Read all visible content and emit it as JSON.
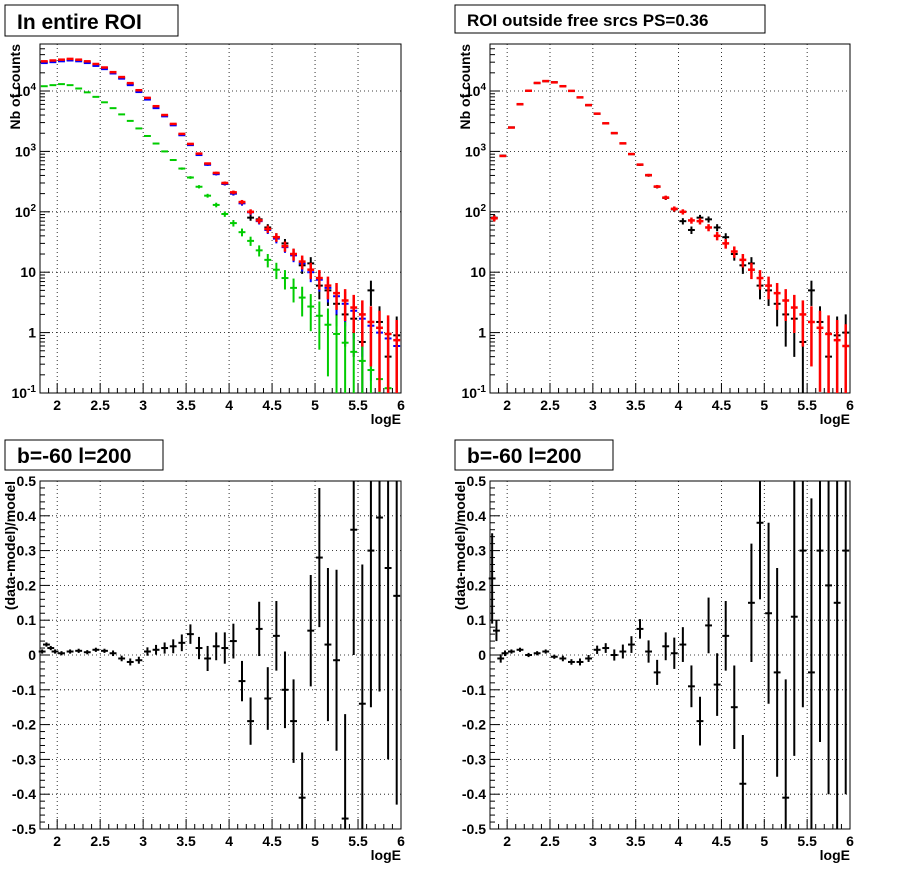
{
  "chart_data": [
    {
      "type": "scatter",
      "title": "In entire ROI",
      "xlabel": "logE",
      "ylabel": "Nb of counts",
      "xlim": [
        1.8,
        6.0
      ],
      "ylim": [
        0.1,
        60000
      ],
      "yscale": "log",
      "grid": true,
      "xticks": [
        "2",
        "2.5",
        "3",
        "3.5",
        "4",
        "4.5",
        "5",
        "5.5",
        "6"
      ],
      "yticks": [
        "10^-1",
        "1",
        "10",
        "10^2",
        "10^3",
        "10^4"
      ],
      "series": [
        {
          "color": "#000000",
          "x": [
            1.85,
            1.95,
            2.05,
            2.15,
            2.25,
            2.35,
            2.45,
            2.55,
            2.65,
            2.75,
            2.85,
            2.95,
            3.05,
            3.15,
            3.25,
            3.35,
            3.45,
            3.55,
            3.65,
            3.75,
            3.85,
            3.95,
            4.05,
            4.15,
            4.25,
            4.35,
            4.45,
            4.55,
            4.65,
            4.75,
            4.85,
            4.95,
            5.05,
            5.15,
            5.25,
            5.35,
            5.45,
            5.55,
            5.65,
            5.75,
            5.85,
            5.95
          ],
          "y": [
            30000,
            31000,
            32000,
            33000,
            32000,
            30000,
            27000,
            24000,
            20000,
            16500,
            13000,
            10000,
            7500,
            5400,
            3900,
            2800,
            1900,
            1300,
            900,
            620,
            430,
            290,
            200,
            140,
            80,
            75,
            55,
            38,
            30,
            20,
            13,
            14,
            6,
            5,
            3,
            2,
            1.7,
            0.7,
            5,
            1.5,
            0.4,
            0.9
          ]
        },
        {
          "color": "#0000ff",
          "x": [
            1.85,
            1.95,
            2.05,
            2.15,
            2.25,
            2.35,
            2.45,
            2.55,
            2.65,
            2.75,
            2.85,
            2.95,
            3.05,
            3.15,
            3.25,
            3.35,
            3.45,
            3.55,
            3.65,
            3.75,
            3.85,
            3.95,
            4.05,
            4.15,
            4.25,
            4.35,
            4.45,
            4.55,
            4.65,
            4.75,
            4.85,
            4.95,
            5.05,
            5.15,
            5.25,
            5.35,
            5.45,
            5.55,
            5.65,
            5.75,
            5.85,
            5.95
          ],
          "y": [
            29000,
            30000,
            31000,
            32000,
            31000,
            29000,
            26000,
            23000,
            19500,
            16000,
            12500,
            9600,
            7200,
            5200,
            3800,
            2700,
            1850,
            1270,
            870,
            600,
            420,
            290,
            200,
            138,
            98,
            70,
            50,
            36,
            26,
            19,
            14,
            10,
            7.5,
            5.5,
            4,
            3,
            2.3,
            1.7,
            1.3,
            1,
            0.8,
            0.6
          ]
        },
        {
          "color": "#00cc00",
          "x": [
            1.85,
            1.95,
            2.05,
            2.15,
            2.25,
            2.35,
            2.45,
            2.55,
            2.65,
            2.75,
            2.85,
            2.95,
            3.05,
            3.15,
            3.25,
            3.35,
            3.45,
            3.55,
            3.65,
            3.75,
            3.85,
            3.95,
            4.05,
            4.15,
            4.25,
            4.35,
            4.45,
            4.55,
            4.65,
            4.75,
            4.85,
            4.95,
            5.05,
            5.15,
            5.25,
            5.35,
            5.45,
            5.55,
            5.65,
            5.75,
            5.85,
            5.95
          ],
          "y": [
            12000,
            12500,
            13000,
            12500,
            11000,
            9500,
            8000,
            6500,
            5200,
            4100,
            3200,
            2400,
            1800,
            1350,
            1000,
            720,
            520,
            370,
            260,
            185,
            130,
            92,
            65,
            46,
            33,
            23,
            16,
            11,
            8,
            5.5,
            3.8,
            2.7,
            1.9,
            1.35,
            0.95,
            0.68,
            0.48,
            0.34,
            0.24,
            0.17,
            0.12,
            0.09
          ]
        },
        {
          "color": "#ff0000",
          "x": [
            1.85,
            1.95,
            2.05,
            2.15,
            2.25,
            2.35,
            2.45,
            2.55,
            2.65,
            2.75,
            2.85,
            2.95,
            3.05,
            3.15,
            3.25,
            3.35,
            3.45,
            3.55,
            3.65,
            3.75,
            3.85,
            3.95,
            4.05,
            4.15,
            4.25,
            4.35,
            4.45,
            4.55,
            4.65,
            4.75,
            4.85,
            4.95,
            5.05,
            5.15,
            5.25,
            5.35,
            5.45,
            5.55,
            5.65,
            5.75,
            5.85,
            5.95
          ],
          "y": [
            31000,
            32000,
            33000,
            34000,
            33000,
            31000,
            28000,
            24500,
            20500,
            17000,
            13500,
            10300,
            7700,
            5600,
            4000,
            2850,
            1950,
            1330,
            920,
            630,
            440,
            300,
            210,
            145,
            100,
            72,
            52,
            38,
            27,
            20,
            15,
            11,
            8,
            6,
            4.5,
            3.4,
            2.6,
            2,
            1.5,
            1.2,
            0.95,
            0.75
          ]
        }
      ]
    },
    {
      "type": "scatter",
      "title": "ROI outside free srcs PS=0.36",
      "xlabel": "logE",
      "ylabel": "Nb of counts",
      "xlim": [
        1.8,
        6.0
      ],
      "ylim": [
        0.1,
        60000
      ],
      "yscale": "log",
      "grid": true,
      "xticks": [
        "2",
        "2.5",
        "3",
        "3.5",
        "4",
        "4.5",
        "5",
        "5.5",
        "6"
      ],
      "yticks": [
        "10^-1",
        "1",
        "10",
        "10^2",
        "10^3",
        "10^4"
      ],
      "series": [
        {
          "color": "#000000",
          "x": [
            1.85,
            1.95,
            2.05,
            2.15,
            2.25,
            2.35,
            2.45,
            2.55,
            2.65,
            2.75,
            2.85,
            2.95,
            3.05,
            3.15,
            3.25,
            3.35,
            3.45,
            3.55,
            3.65,
            3.75,
            3.85,
            3.95,
            4.05,
            4.15,
            4.25,
            4.35,
            4.45,
            4.55,
            4.65,
            4.75,
            4.85,
            4.95,
            5.05,
            5.15,
            5.25,
            5.35,
            5.45,
            5.55,
            5.65,
            5.75,
            5.85,
            5.95
          ],
          "y": [
            80,
            850,
            2500,
            6000,
            10000,
            13500,
            14500,
            14000,
            12000,
            10000,
            7800,
            5800,
            4200,
            2900,
            2000,
            1350,
            900,
            600,
            400,
            260,
            170,
            110,
            70,
            50,
            80,
            75,
            55,
            38,
            20,
            13,
            14,
            6,
            5,
            3,
            2,
            1.7,
            0.7,
            5,
            1.5,
            0.4,
            0.9,
            1
          ]
        },
        {
          "color": "#ff0000",
          "x": [
            1.85,
            1.95,
            2.05,
            2.15,
            2.25,
            2.35,
            2.45,
            2.55,
            2.65,
            2.75,
            2.85,
            2.95,
            3.05,
            3.15,
            3.25,
            3.35,
            3.45,
            3.55,
            3.65,
            3.75,
            3.85,
            3.95,
            4.05,
            4.15,
            4.25,
            4.35,
            4.45,
            4.55,
            4.65,
            4.75,
            4.85,
            4.95,
            5.05,
            5.15,
            5.25,
            5.35,
            5.45,
            5.55,
            5.65,
            5.75,
            5.85,
            5.95
          ],
          "y": [
            78,
            840,
            2480,
            6050,
            10100,
            13600,
            14600,
            13900,
            12000,
            10050,
            7850,
            5850,
            4220,
            2920,
            2010,
            1360,
            905,
            605,
            405,
            262,
            172,
            112,
            100,
            72,
            70,
            55,
            40,
            30,
            22,
            16,
            11,
            8,
            6,
            4.5,
            3.4,
            2.6,
            2,
            1.5,
            1.2,
            0.95,
            0.75,
            0.6
          ]
        }
      ]
    },
    {
      "type": "scatter",
      "title": "b=-60 l=200",
      "xlabel": "logE",
      "ylabel": "(data-model)/model",
      "xlim": [
        1.8,
        6.0
      ],
      "ylim": [
        -0.5,
        0.5
      ],
      "grid": true,
      "xticks": [
        "2",
        "2.5",
        "3",
        "3.5",
        "4",
        "4.5",
        "5",
        "5.5",
        "6"
      ],
      "yticks": [
        "-0.5",
        "-0.4",
        "-0.3",
        "-0.2",
        "-0.1",
        "0",
        "0.1",
        "0.2",
        "0.3",
        "0.4",
        "0.5"
      ],
      "series": [
        {
          "color": "#000000",
          "x": [
            1.825,
            1.875,
            1.925,
            1.975,
            2.05,
            2.15,
            2.25,
            2.35,
            2.45,
            2.55,
            2.65,
            2.75,
            2.85,
            2.95,
            3.05,
            3.15,
            3.25,
            3.35,
            3.45,
            3.55,
            3.65,
            3.75,
            3.85,
            3.95,
            4.05,
            4.15,
            4.25,
            4.35,
            4.45,
            4.55,
            4.65,
            4.75,
            4.85,
            4.95,
            5.05,
            5.15,
            5.25,
            5.35,
            5.45,
            5.55,
            5.65,
            5.75,
            5.85,
            5.95
          ],
          "y": [
            0.01,
            0.03,
            0.02,
            0.01,
            0.005,
            0.01,
            0.012,
            0.008,
            0.015,
            0.012,
            0.005,
            -0.01,
            -0.02,
            -0.015,
            0.01,
            0.015,
            0.02,
            0.025,
            0.035,
            0.06,
            0.02,
            -0.01,
            0.025,
            0.02,
            0.04,
            -0.075,
            -0.19,
            0.075,
            -0.125,
            0.055,
            -0.1,
            -0.19,
            -0.41,
            0.07,
            0.28,
            0.03,
            -0.015,
            -0.47,
            0.36,
            -0.14,
            0.3,
            0.395,
            0.25,
            0.17
          ],
          "err": [
            0.006,
            0.006,
            0.006,
            0.006,
            0.006,
            0.006,
            0.006,
            0.006,
            0.006,
            0.006,
            0.008,
            0.008,
            0.01,
            0.01,
            0.012,
            0.014,
            0.016,
            0.02,
            0.024,
            0.028,
            0.032,
            0.036,
            0.04,
            0.045,
            0.05,
            0.058,
            0.068,
            0.078,
            0.09,
            0.1,
            0.11,
            0.12,
            0.13,
            0.16,
            0.2,
            0.22,
            0.26,
            0.3,
            0.36,
            0.4,
            0.45,
            0.5,
            0.55,
            0.6
          ]
        }
      ]
    },
    {
      "type": "scatter",
      "title": "b=-60 l=200",
      "xlabel": "logE",
      "ylabel": "(data-model)/model",
      "xlim": [
        1.8,
        6.0
      ],
      "ylim": [
        -0.5,
        0.5
      ],
      "grid": true,
      "xticks": [
        "2",
        "2.5",
        "3",
        "3.5",
        "4",
        "4.5",
        "5",
        "5.5",
        "6"
      ],
      "yticks": [
        "-0.5",
        "-0.4",
        "-0.3",
        "-0.2",
        "-0.1",
        "0",
        "0.1",
        "0.2",
        "0.3",
        "0.4",
        "0.5"
      ],
      "series": [
        {
          "color": "#000000",
          "x": [
            1.825,
            1.875,
            1.925,
            1.975,
            2.05,
            2.15,
            2.25,
            2.35,
            2.45,
            2.55,
            2.65,
            2.75,
            2.85,
            2.95,
            3.05,
            3.15,
            3.25,
            3.35,
            3.45,
            3.55,
            3.65,
            3.75,
            3.85,
            3.95,
            4.05,
            4.15,
            4.25,
            4.35,
            4.45,
            4.55,
            4.65,
            4.75,
            4.85,
            4.95,
            5.05,
            5.15,
            5.25,
            5.35,
            5.45,
            5.55,
            5.65,
            5.75,
            5.85,
            5.95
          ],
          "y": [
            0.22,
            0.07,
            -0.01,
            0.005,
            0.01,
            0.015,
            0.0,
            0.005,
            0.01,
            -0.005,
            -0.01,
            -0.02,
            -0.02,
            -0.01,
            0.015,
            0.02,
            0.0,
            0.01,
            0.03,
            0.075,
            0.01,
            -0.05,
            0.025,
            0.005,
            0.03,
            -0.09,
            -0.19,
            0.085,
            -0.085,
            0.055,
            -0.15,
            -0.37,
            0.15,
            0.38,
            0.12,
            -0.05,
            -0.41,
            0.11,
            0.3,
            -0.05,
            0.3,
            0.2,
            0.15,
            0.3
          ],
          "err": [
            0.13,
            0.03,
            0.012,
            0.008,
            0.006,
            0.006,
            0.006,
            0.006,
            0.006,
            0.006,
            0.008,
            0.008,
            0.01,
            0.01,
            0.012,
            0.014,
            0.016,
            0.02,
            0.024,
            0.028,
            0.032,
            0.036,
            0.04,
            0.045,
            0.05,
            0.06,
            0.07,
            0.08,
            0.09,
            0.1,
            0.12,
            0.14,
            0.17,
            0.22,
            0.26,
            0.3,
            0.34,
            0.4,
            0.45,
            0.5,
            0.55,
            0.6,
            0.65,
            0.7
          ]
        }
      ]
    }
  ]
}
